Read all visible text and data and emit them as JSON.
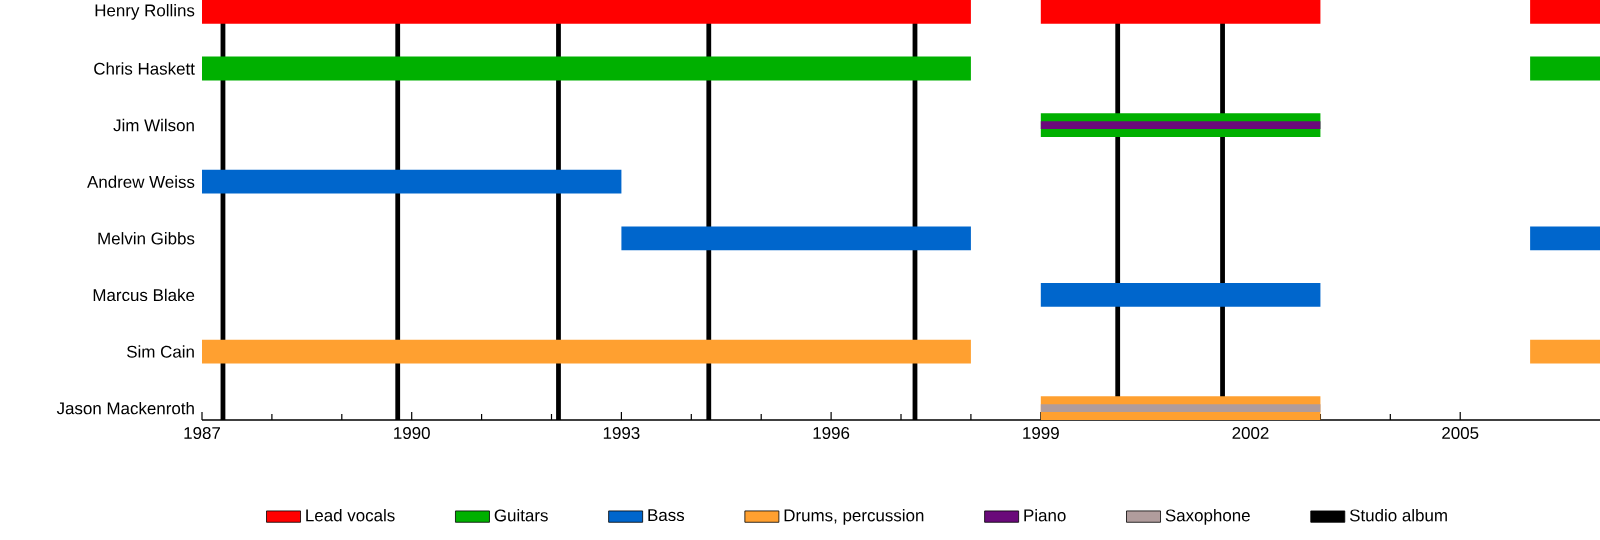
{
  "chart_data": {
    "type": "bar",
    "orientation": "horizontal",
    "legend": "bottom",
    "categories": [
      "Henry Rollins",
      "Chris Haskett",
      "Jim Wilson",
      "Andrew Weiss",
      "Melvin Gibbs",
      "Marcus Blake",
      "Sim Cain",
      "Jason Mackenroth"
    ],
    "xlim": [
      1987,
      2007
    ],
    "xticks": [
      1987,
      1990,
      1993,
      1996,
      1999,
      2002,
      2005
    ],
    "series": [
      {
        "name": "Lead vocals",
        "color": "#ff0000",
        "base": [
          1987,
          null,
          null,
          null,
          null,
          null,
          null,
          null
        ],
        "values": [
          11,
          null,
          null,
          null,
          null,
          null,
          null,
          null
        ]
      },
      {
        "name": "Guitars",
        "color": "#00b000",
        "base": [
          null,
          1987,
          1999,
          null,
          null,
          null,
          null,
          null
        ],
        "values": [
          null,
          11,
          4,
          null,
          null,
          null,
          null,
          null
        ]
      },
      {
        "name": "Bass",
        "color": "#0066cc",
        "base": [
          null,
          null,
          null,
          1987,
          1993,
          1999,
          null,
          null
        ],
        "values": [
          null,
          null,
          null,
          6,
          5,
          4,
          null,
          null
        ]
      },
      {
        "name": "Drums, percussion",
        "color": "#ffa030",
        "base": [
          null,
          null,
          null,
          null,
          null,
          null,
          1987,
          1999
        ],
        "values": [
          null,
          null,
          null,
          null,
          null,
          null,
          11,
          4
        ]
      },
      {
        "name": "Piano",
        "color": "#6a0a7a",
        "base": [
          null,
          null,
          1999,
          null,
          null,
          null,
          null,
          null
        ],
        "values": [
          null,
          null,
          4,
          null,
          null,
          null,
          null,
          null
        ]
      },
      {
        "name": "Saxophone",
        "color": "#b09c9c",
        "base": [
          null,
          null,
          null,
          null,
          null,
          null,
          null,
          1999
        ],
        "values": [
          null,
          null,
          null,
          null,
          null,
          null,
          null,
          4
        ]
      },
      {
        "color": "#ff0000",
        "base": [
          1999,
          null,
          null,
          null,
          null,
          null,
          null,
          null
        ],
        "values": [
          4,
          null,
          null,
          null,
          null,
          null,
          null,
          null
        ]
      },
      {
        "color": "#ff0000",
        "base": [
          2006,
          null,
          null,
          null,
          null,
          null,
          null,
          null
        ],
        "values": [
          1,
          null,
          null,
          null,
          null,
          null,
          null,
          null
        ]
      },
      {
        "color": "#00b000",
        "base": [
          null,
          2006,
          null,
          null,
          null,
          null,
          null,
          null
        ],
        "values": [
          null,
          1,
          null,
          null,
          null,
          null,
          null,
          null
        ]
      },
      {
        "color": "#0066cc",
        "base": [
          null,
          null,
          null,
          null,
          2006,
          null,
          null,
          null
        ],
        "values": [
          null,
          null,
          null,
          null,
          1,
          null,
          null,
          null
        ]
      },
      {
        "color": "#ffa030",
        "base": [
          null,
          null,
          null,
          null,
          null,
          null,
          2006,
          null
        ],
        "values": [
          null,
          null,
          null,
          null,
          null,
          null,
          1,
          null
        ]
      }
    ],
    "ref_lines": [
      {
        "axis": "x",
        "value": 1987.3,
        "label": "Studio album",
        "color": "#000000"
      },
      {
        "axis": "x",
        "value": 1989.8,
        "color": "#000000"
      },
      {
        "axis": "x",
        "value": 1992.1,
        "color": "#000000"
      },
      {
        "axis": "x",
        "value": 1994.25,
        "color": "#000000"
      },
      {
        "axis": "x",
        "value": 1997.2,
        "color": "#000000"
      },
      {
        "axis": "x",
        "value": 2000.1,
        "color": "#000000"
      },
      {
        "axis": "x",
        "value": 2001.6,
        "color": "#000000"
      }
    ]
  }
}
